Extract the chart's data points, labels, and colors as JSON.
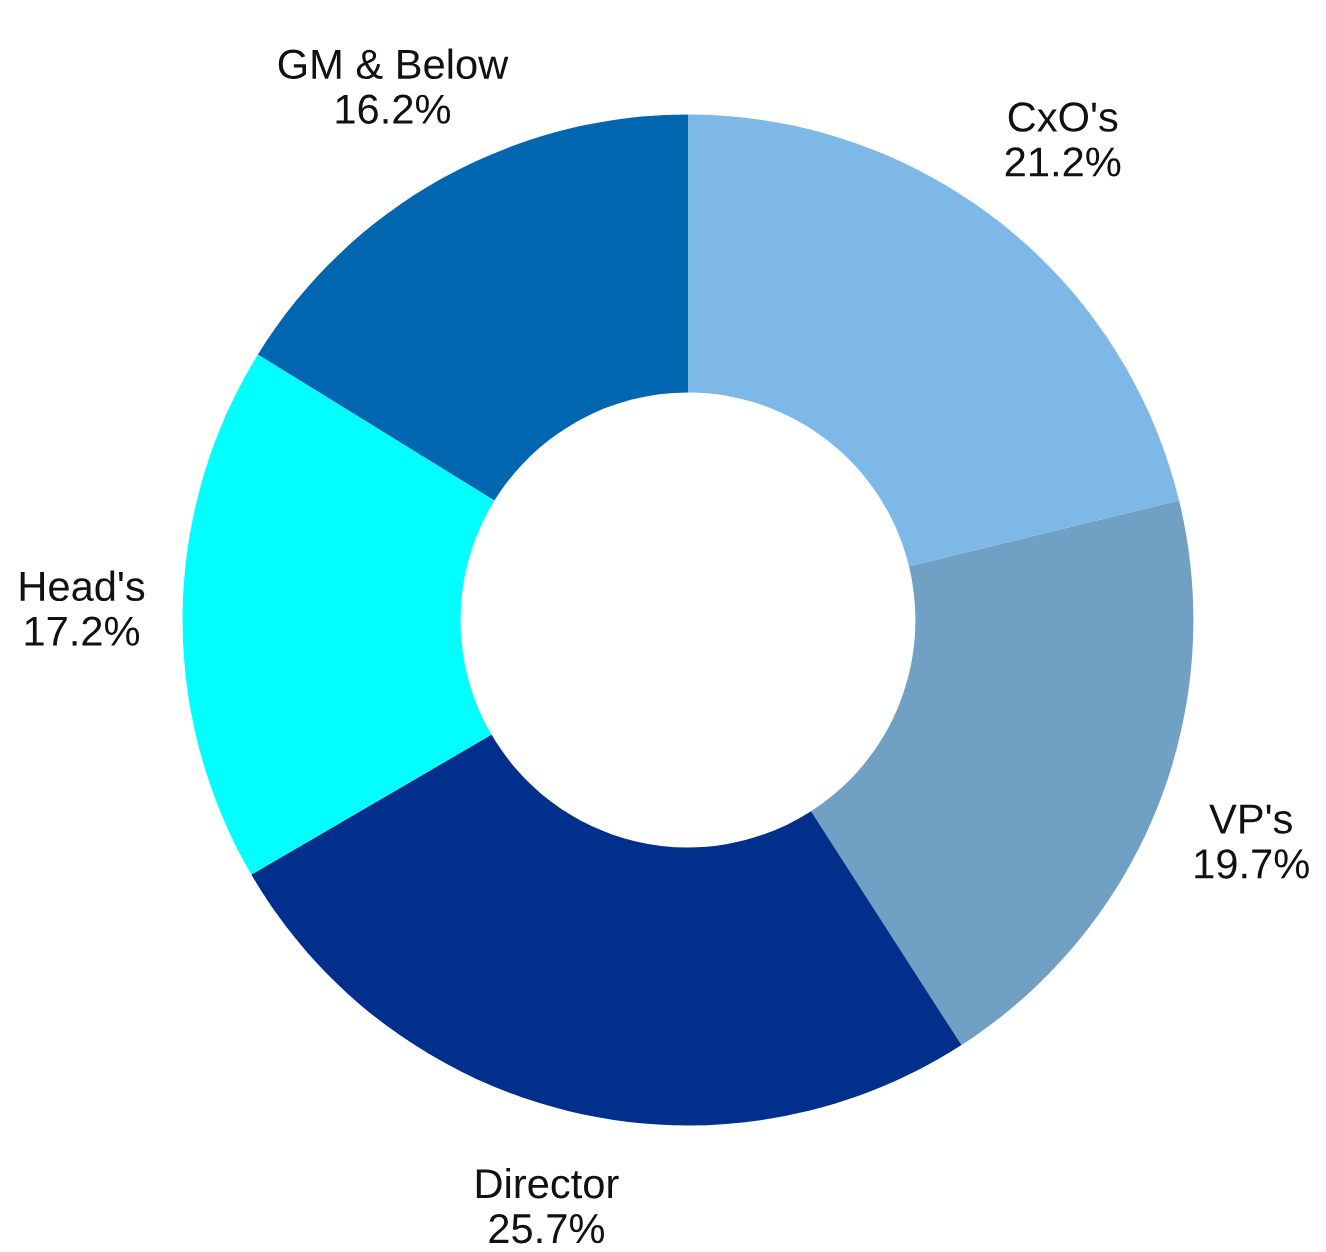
{
  "chart_data": {
    "type": "donut",
    "categories": [
      "CxO's",
      "VP's",
      "Director",
      "Head's",
      "GM & Below"
    ],
    "values": [
      21.2,
      19.7,
      25.7,
      17.2,
      16.2
    ],
    "value_labels": [
      "21.2%",
      "19.7%",
      "25.7%",
      "17.2%",
      "16.2%"
    ],
    "colors": [
      "#7eb8e6",
      "#70a1c4",
      "#00308c",
      "#00ffff",
      "#0066b0"
    ],
    "legend": false
  }
}
